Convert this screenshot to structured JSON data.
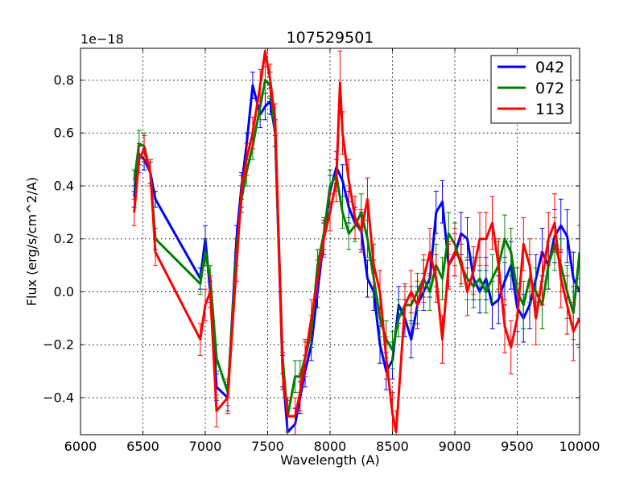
{
  "chart_data": {
    "type": "line",
    "title": "107529501",
    "xlabel": "Wavelength (A)",
    "ylabel": "Flux (erg/s/cm^2/A)",
    "offset_text": "1e−18",
    "xlim": [
      6000,
      10000
    ],
    "ylim": [
      -0.54,
      0.92
    ],
    "x_ticks": [
      6000,
      6500,
      7000,
      7500,
      8000,
      8500,
      9000,
      9500,
      10000
    ],
    "x_tick_labels": [
      "6000",
      "6500",
      "7000",
      "7500",
      "8000",
      "8500",
      "9000",
      "9500",
      "10000"
    ],
    "y_ticks": [
      -0.4,
      -0.2,
      0.0,
      0.2,
      0.4,
      0.6,
      0.8
    ],
    "y_tick_labels": [
      "−0.4",
      "−0.2",
      "0.0",
      "0.2",
      "0.4",
      "0.6",
      "0.8"
    ],
    "grid": true,
    "legend_position": "top-right",
    "series": [
      {
        "name": "042",
        "color": "#0000ff",
        "points": [
          [
            6430,
            0.36,
            0.04
          ],
          [
            6470,
            0.52,
            0.04
          ],
          [
            6510,
            0.5,
            0.04
          ],
          [
            6560,
            0.45,
            0.04
          ],
          [
            6600,
            0.35,
            0.03
          ],
          [
            6960,
            0.05,
            0.04
          ],
          [
            7000,
            0.2,
            0.05
          ],
          [
            7040,
            0.0,
            0.04
          ],
          [
            7090,
            -0.36,
            0.05
          ],
          [
            7180,
            -0.4,
            0.05
          ],
          [
            7250,
            0.2,
            0.05
          ],
          [
            7290,
            0.4,
            0.05
          ],
          [
            7330,
            0.55,
            0.05
          ],
          [
            7380,
            0.78,
            0.05
          ],
          [
            7440,
            0.67,
            0.05
          ],
          [
            7480,
            0.7,
            0.05
          ],
          [
            7520,
            0.72,
            0.05
          ],
          [
            7560,
            0.6,
            0.05
          ],
          [
            7620,
            -0.3,
            0.06
          ],
          [
            7660,
            -0.53,
            0.06
          ],
          [
            7720,
            -0.5,
            0.06
          ],
          [
            7760,
            -0.4,
            0.06
          ],
          [
            7800,
            -0.3,
            0.06
          ],
          [
            7850,
            -0.2,
            0.06
          ],
          [
            7900,
            0.0,
            0.06
          ],
          [
            7950,
            0.2,
            0.06
          ],
          [
            8000,
            0.38,
            0.06
          ],
          [
            8050,
            0.47,
            0.06
          ],
          [
            8100,
            0.42,
            0.06
          ],
          [
            8150,
            0.32,
            0.06
          ],
          [
            8200,
            0.26,
            0.06
          ],
          [
            8250,
            0.23,
            0.07
          ],
          [
            8300,
            0.05,
            0.07
          ],
          [
            8350,
            0.0,
            0.07
          ],
          [
            8400,
            -0.2,
            0.07
          ],
          [
            8450,
            -0.3,
            0.07
          ],
          [
            8500,
            -0.26,
            0.07
          ],
          [
            8550,
            -0.05,
            0.07
          ],
          [
            8600,
            -0.1,
            0.07
          ],
          [
            8650,
            -0.18,
            0.07
          ],
          [
            8700,
            -0.05,
            0.07
          ],
          [
            8750,
            0.0,
            0.07
          ],
          [
            8800,
            0.05,
            0.07
          ],
          [
            8850,
            0.3,
            0.08
          ],
          [
            8900,
            0.34,
            0.08
          ],
          [
            8950,
            0.1,
            0.08
          ],
          [
            9000,
            0.14,
            0.08
          ],
          [
            9050,
            0.22,
            0.08
          ],
          [
            9100,
            0.2,
            0.08
          ],
          [
            9150,
            0.05,
            0.08
          ],
          [
            9200,
            0.0,
            0.08
          ],
          [
            9250,
            0.05,
            0.08
          ],
          [
            9300,
            -0.05,
            0.09
          ],
          [
            9350,
            -0.03,
            0.09
          ],
          [
            9400,
            0.04,
            0.09
          ],
          [
            9450,
            0.1,
            0.09
          ],
          [
            9500,
            -0.06,
            0.09
          ],
          [
            9550,
            -0.1,
            0.09
          ],
          [
            9600,
            -0.05,
            0.09
          ],
          [
            9650,
            0.05,
            0.09
          ],
          [
            9700,
            0.15,
            0.09
          ],
          [
            9750,
            0.1,
            0.09
          ],
          [
            9800,
            0.21,
            0.1
          ],
          [
            9850,
            0.25,
            0.1
          ],
          [
            9900,
            0.21,
            0.1
          ],
          [
            9950,
            0.05,
            0.1
          ],
          [
            10000,
            0.0,
            0.1
          ]
        ]
      },
      {
        "name": "072",
        "color": "#008000",
        "points": [
          [
            6430,
            0.42,
            0.04
          ],
          [
            6470,
            0.56,
            0.05
          ],
          [
            6510,
            0.55,
            0.05
          ],
          [
            6560,
            0.45,
            0.05
          ],
          [
            6600,
            0.2,
            0.04
          ],
          [
            6960,
            0.03,
            0.04
          ],
          [
            7000,
            0.15,
            0.05
          ],
          [
            7040,
            0.05,
            0.05
          ],
          [
            7090,
            -0.25,
            0.05
          ],
          [
            7180,
            -0.38,
            0.05
          ],
          [
            7250,
            0.15,
            0.05
          ],
          [
            7290,
            0.35,
            0.05
          ],
          [
            7330,
            0.45,
            0.05
          ],
          [
            7380,
            0.55,
            0.05
          ],
          [
            7440,
            0.7,
            0.05
          ],
          [
            7480,
            0.8,
            0.05
          ],
          [
            7520,
            0.78,
            0.05
          ],
          [
            7560,
            0.6,
            0.05
          ],
          [
            7620,
            -0.25,
            0.06
          ],
          [
            7660,
            -0.47,
            0.06
          ],
          [
            7720,
            -0.32,
            0.06
          ],
          [
            7760,
            -0.32,
            0.06
          ],
          [
            7800,
            -0.25,
            0.06
          ],
          [
            7850,
            -0.15,
            0.06
          ],
          [
            7900,
            0.1,
            0.06
          ],
          [
            7950,
            0.22,
            0.06
          ],
          [
            8000,
            0.4,
            0.06
          ],
          [
            8050,
            0.44,
            0.06
          ],
          [
            8100,
            0.3,
            0.06
          ],
          [
            8150,
            0.22,
            0.06
          ],
          [
            8200,
            0.25,
            0.06
          ],
          [
            8250,
            0.3,
            0.07
          ],
          [
            8300,
            0.2,
            0.07
          ],
          [
            8350,
            0.05,
            0.07
          ],
          [
            8400,
            -0.1,
            0.07
          ],
          [
            8450,
            -0.18,
            0.07
          ],
          [
            8500,
            -0.22,
            0.07
          ],
          [
            8550,
            -0.1,
            0.07
          ],
          [
            8600,
            -0.05,
            0.07
          ],
          [
            8650,
            -0.05,
            0.07
          ],
          [
            8700,
            0.0,
            0.07
          ],
          [
            8750,
            0.05,
            0.07
          ],
          [
            8800,
            0.0,
            0.07
          ],
          [
            8850,
            0.1,
            0.08
          ],
          [
            8900,
            0.05,
            0.08
          ],
          [
            8950,
            0.22,
            0.08
          ],
          [
            9000,
            0.18,
            0.08
          ],
          [
            9050,
            0.1,
            0.08
          ],
          [
            9100,
            0.05,
            0.08
          ],
          [
            9150,
            0.02,
            0.08
          ],
          [
            9200,
            0.05,
            0.08
          ],
          [
            9250,
            0.0,
            0.08
          ],
          [
            9300,
            0.05,
            0.09
          ],
          [
            9350,
            0.1,
            0.09
          ],
          [
            9400,
            0.2,
            0.09
          ],
          [
            9450,
            0.15,
            0.09
          ],
          [
            9500,
            0.0,
            0.09
          ],
          [
            9550,
            -0.05,
            0.09
          ],
          [
            9600,
            0.05,
            0.09
          ],
          [
            9650,
            0.0,
            0.09
          ],
          [
            9700,
            -0.05,
            0.09
          ],
          [
            9750,
            0.1,
            0.09
          ],
          [
            9800,
            0.18,
            0.1
          ],
          [
            9850,
            0.1,
            0.1
          ],
          [
            9900,
            0.0,
            0.1
          ],
          [
            9950,
            -0.08,
            0.1
          ],
          [
            10000,
            0.15,
            0.1
          ]
        ]
      },
      {
        "name": "113",
        "color": "#ff0000",
        "points": [
          [
            6430,
            0.3,
            0.05
          ],
          [
            6470,
            0.5,
            0.05
          ],
          [
            6510,
            0.54,
            0.05
          ],
          [
            6560,
            0.45,
            0.05
          ],
          [
            6600,
            0.15,
            0.05
          ],
          [
            6960,
            -0.18,
            0.06
          ],
          [
            7000,
            -0.05,
            0.06
          ],
          [
            7040,
            0.0,
            0.06
          ],
          [
            7090,
            -0.45,
            0.06
          ],
          [
            7180,
            -0.4,
            0.06
          ],
          [
            7250,
            0.1,
            0.06
          ],
          [
            7290,
            0.38,
            0.06
          ],
          [
            7330,
            0.5,
            0.06
          ],
          [
            7380,
            0.6,
            0.06
          ],
          [
            7440,
            0.78,
            0.06
          ],
          [
            7480,
            0.91,
            0.06
          ],
          [
            7520,
            0.8,
            0.06
          ],
          [
            7560,
            0.65,
            0.06
          ],
          [
            7620,
            -0.3,
            0.07
          ],
          [
            7660,
            -0.47,
            0.07
          ],
          [
            7720,
            -0.47,
            0.07
          ],
          [
            7760,
            -0.38,
            0.07
          ],
          [
            7800,
            -0.25,
            0.07
          ],
          [
            7850,
            -0.1,
            0.07
          ],
          [
            7900,
            0.05,
            0.07
          ],
          [
            7950,
            0.2,
            0.07
          ],
          [
            8000,
            0.3,
            0.07
          ],
          [
            8050,
            0.42,
            0.08
          ],
          [
            8080,
            0.79,
            0.12
          ],
          [
            8100,
            0.6,
            0.08
          ],
          [
            8150,
            0.42,
            0.08
          ],
          [
            8200,
            0.28,
            0.08
          ],
          [
            8250,
            0.23,
            0.08
          ],
          [
            8300,
            0.35,
            0.08
          ],
          [
            8350,
            0.1,
            0.08
          ],
          [
            8400,
            0.0,
            0.08
          ],
          [
            8450,
            -0.25,
            0.08
          ],
          [
            8500,
            -0.46,
            0.08
          ],
          [
            8530,
            -0.53,
            0.08
          ],
          [
            8600,
            -0.05,
            0.08
          ],
          [
            8650,
            0.0,
            0.08
          ],
          [
            8700,
            -0.05,
            0.09
          ],
          [
            8750,
            0.05,
            0.09
          ],
          [
            8800,
            0.15,
            0.09
          ],
          [
            8850,
            0.05,
            0.09
          ],
          [
            8900,
            -0.18,
            0.09
          ],
          [
            8950,
            0.1,
            0.09
          ],
          [
            9000,
            0.15,
            0.09
          ],
          [
            9050,
            0.12,
            0.09
          ],
          [
            9100,
            0.0,
            0.09
          ],
          [
            9150,
            0.08,
            0.09
          ],
          [
            9200,
            0.2,
            0.1
          ],
          [
            9250,
            0.2,
            0.1
          ],
          [
            9300,
            0.26,
            0.1
          ],
          [
            9350,
            0.1,
            0.1
          ],
          [
            9400,
            -0.13,
            0.1
          ],
          [
            9450,
            -0.21,
            0.1
          ],
          [
            9500,
            -0.1,
            0.1
          ],
          [
            9550,
            0.18,
            0.1
          ],
          [
            9600,
            0.1,
            0.1
          ],
          [
            9650,
            -0.1,
            0.1
          ],
          [
            9700,
            0.05,
            0.1
          ],
          [
            9750,
            0.2,
            0.1
          ],
          [
            9800,
            0.26,
            0.11
          ],
          [
            9850,
            0.05,
            0.11
          ],
          [
            9900,
            -0.05,
            0.11
          ],
          [
            9950,
            -0.15,
            0.11
          ],
          [
            10000,
            -0.1,
            0.11
          ]
        ]
      }
    ]
  }
}
